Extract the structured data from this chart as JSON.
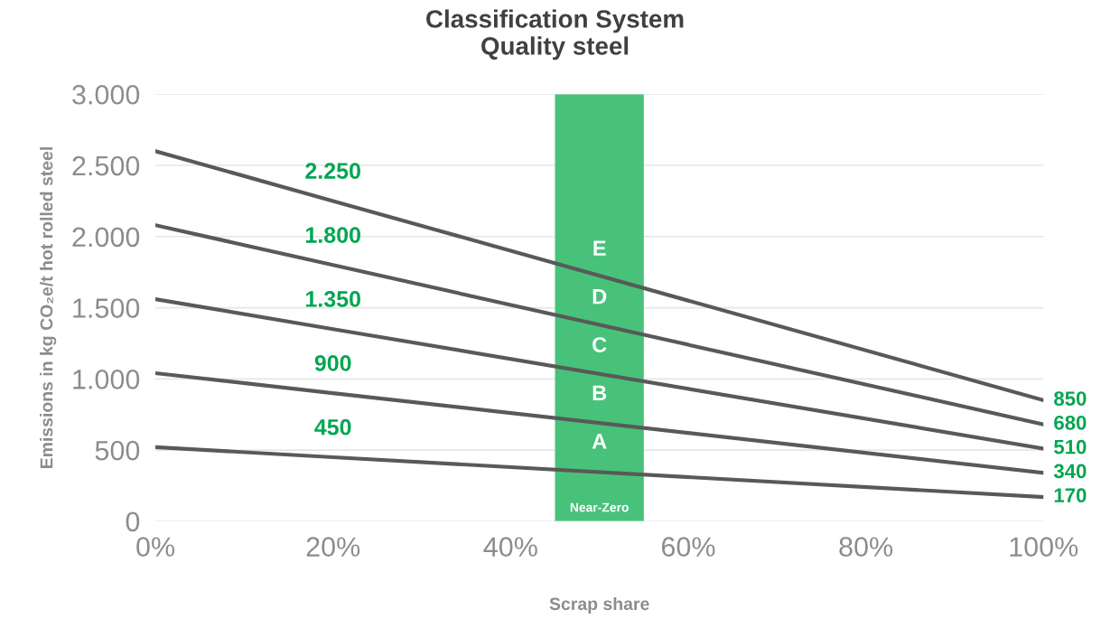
{
  "chart_data": {
    "type": "line",
    "title": "Classification System\nQuality steel",
    "xlabel": "Scrap share",
    "ylabel": "Emissions in kg CO₂e/t hot rolled steel",
    "series": [
      {
        "color": "#595959",
        "x": [
          0,
          20,
          100
        ],
        "values": [
          2600,
          2250,
          850
        ],
        "value_labels": [
          null,
          "2.250",
          "850"
        ]
      },
      {
        "color": "#595959",
        "x": [
          0,
          20,
          100
        ],
        "values": [
          2080,
          1800,
          680
        ],
        "value_labels": [
          null,
          "1.800",
          "680"
        ]
      },
      {
        "color": "#595959",
        "x": [
          0,
          20,
          100
        ],
        "values": [
          1560,
          1350,
          510
        ],
        "value_labels": [
          null,
          "1.350",
          "510"
        ]
      },
      {
        "color": "#595959",
        "x": [
          0,
          20,
          100
        ],
        "values": [
          1040,
          900,
          340
        ],
        "value_labels": [
          null,
          "900",
          "340"
        ]
      },
      {
        "color": "#595959",
        "x": [
          0,
          20,
          100
        ],
        "values": [
          520,
          450,
          170
        ],
        "value_labels": [
          null,
          "450",
          "170"
        ]
      }
    ],
    "bands": [
      {
        "axis": "x",
        "from": 45,
        "to": 55,
        "label": "Near-Zero",
        "color": "#48c27a"
      }
    ],
    "annotations": [
      "E",
      "D",
      "C",
      "B",
      "A"
    ],
    "xlim": [
      0,
      100
    ],
    "xticks": [
      {
        "value": 0,
        "label": "0%"
      },
      {
        "value": 20,
        "label": "20%"
      },
      {
        "value": 40,
        "label": "40%"
      },
      {
        "value": 60,
        "label": "60%"
      },
      {
        "value": 80,
        "label": "80%"
      },
      {
        "value": 100,
        "label": "100%"
      }
    ],
    "ylim": [
      0,
      3000
    ],
    "yticks": [
      0,
      500,
      {
        "value": 1000,
        "label": "1.000"
      },
      {
        "value": 1500,
        "label": "1.500"
      },
      {
        "value": 2000,
        "label": "2.000"
      },
      {
        "value": 2500,
        "label": "2.500"
      },
      {
        "value": 3000,
        "label": "3.000"
      }
    ],
    "grid": "y",
    "marker": "none",
    "line_style": "solid"
  }
}
